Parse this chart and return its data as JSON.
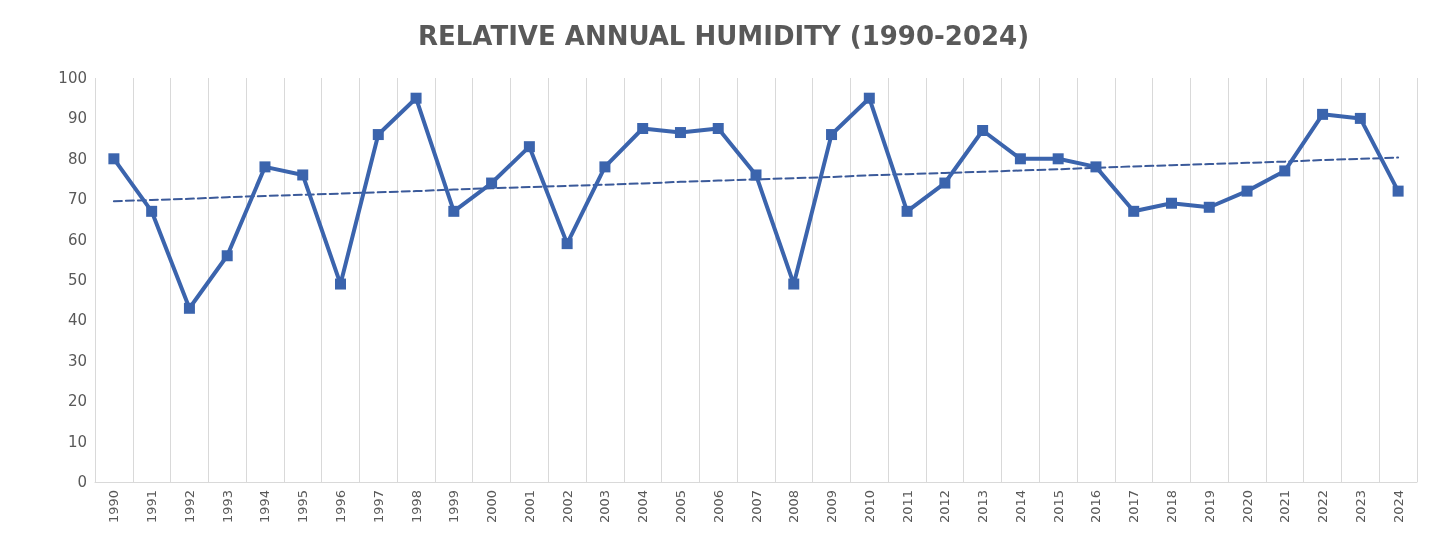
{
  "chart_data": {
    "type": "line",
    "title": "RELATIVE ANNUAL HUMIDITY (1990-2024)",
    "categories": [
      "1990",
      "1991",
      "1992",
      "1993",
      "1994",
      "1995",
      "1996",
      "1997",
      "1998",
      "1999",
      "2000",
      "2001",
      "2002",
      "2003",
      "2004",
      "2005",
      "2006",
      "2007",
      "2008",
      "2009",
      "2010",
      "2011",
      "2012",
      "2013",
      "2014",
      "2015",
      "2016",
      "2017",
      "2018",
      "2019",
      "2020",
      "2021",
      "2022",
      "2023",
      "2024"
    ],
    "series": [
      {
        "color": "#3b64ad",
        "marker": "square",
        "line_style": "solid",
        "values": [
          80,
          67,
          43,
          56,
          78,
          76,
          49,
          86,
          95,
          67,
          74,
          83,
          59,
          78,
          87.5,
          86.5,
          87.5,
          76,
          49,
          86,
          95,
          67,
          74,
          87,
          80,
          80,
          78,
          67,
          69,
          68,
          72,
          77,
          91,
          90,
          72
        ]
      },
      {
        "type": "line",
        "color": "#3b5a9a",
        "marker": "none",
        "line_style": "dashed",
        "values": [
          69.5,
          69.8,
          70.1,
          70.5,
          70.8,
          71.1,
          71.4,
          71.7,
          72.0,
          72.4,
          72.7,
          73.0,
          73.3,
          73.6,
          73.9,
          74.3,
          74.6,
          74.9,
          75.2,
          75.5,
          75.9,
          76.2,
          76.5,
          76.8,
          77.1,
          77.4,
          77.8,
          78.1,
          78.4,
          78.7,
          79.0,
          79.3,
          79.7,
          80.0,
          80.3
        ]
      }
    ],
    "ylim": [
      0,
      100
    ],
    "yticks": [
      0,
      10,
      20,
      30,
      40,
      50,
      60,
      70,
      80,
      90,
      100
    ],
    "grid": "x"
  }
}
